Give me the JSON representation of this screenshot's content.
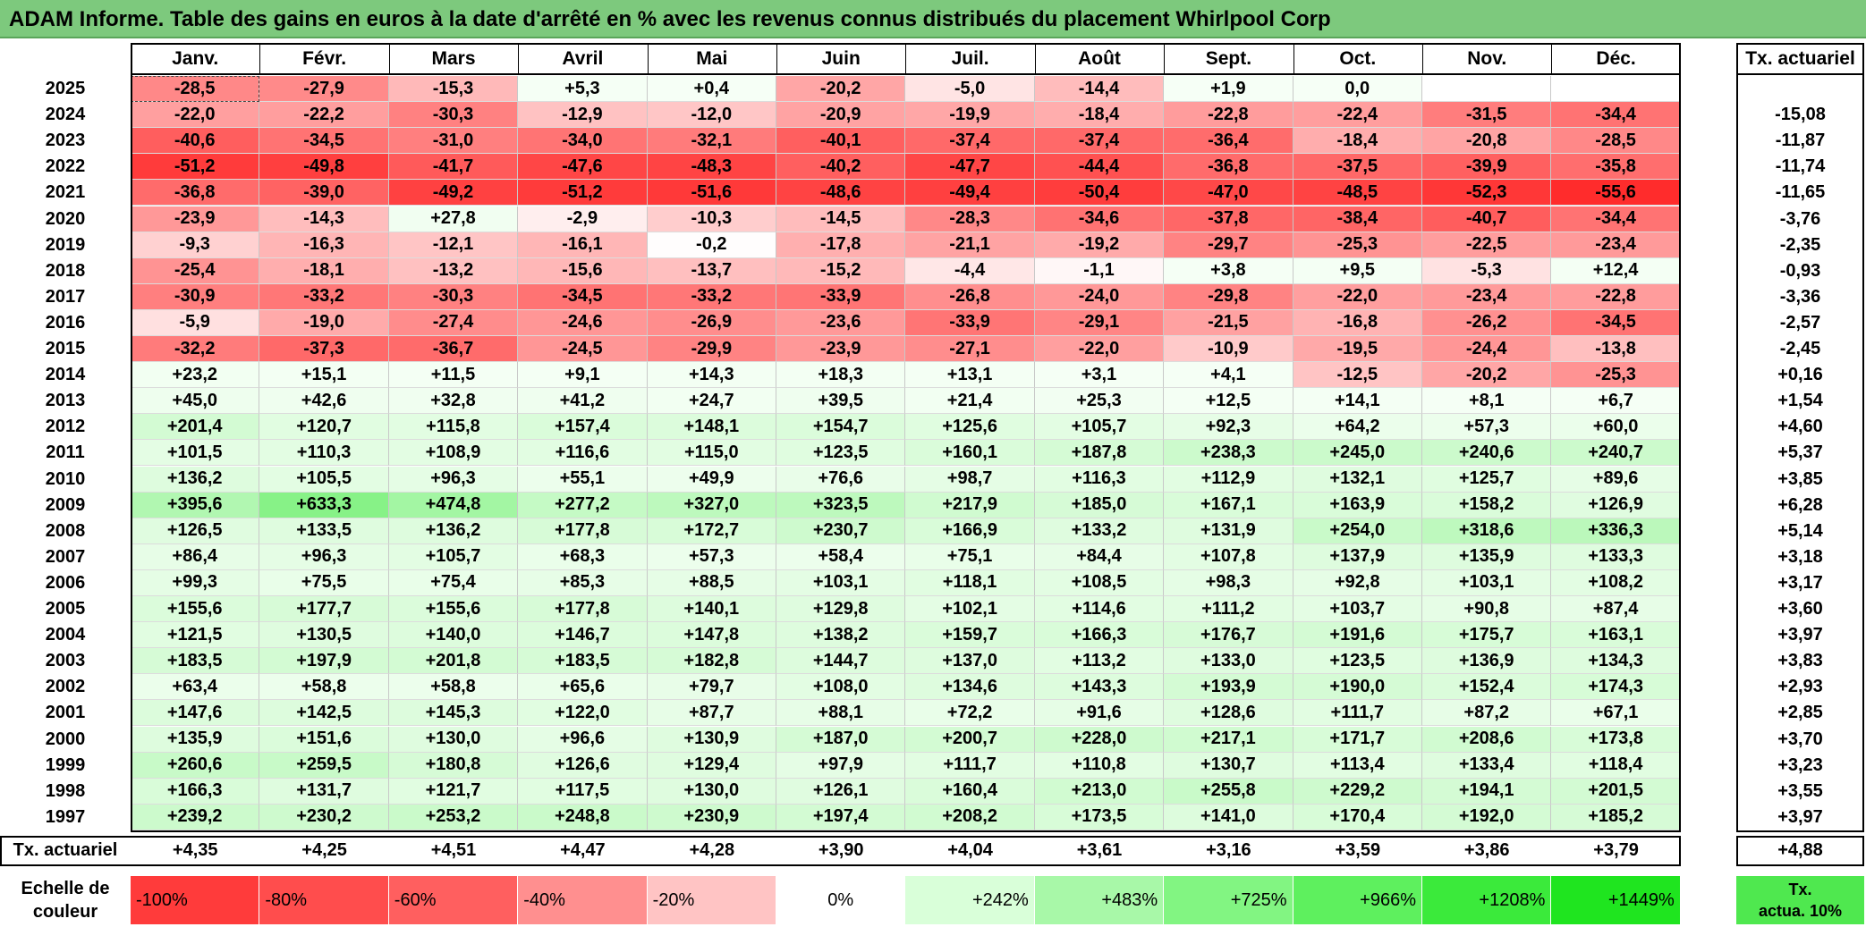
{
  "title": "ADAM Informe. Table des gains en euros à la date d'arrêté en % avec les revenus connus distribués du placement Whirlpool Corp",
  "colors": {
    "title_bg": "#7dc97d",
    "neg_max": "#ff2b2b",
    "pos_max": "#19e619",
    "zero": "#ffffff"
  },
  "chart_data": {
    "type": "heatmap",
    "title": "ADAM Informe. Table des gains en euros à la date d'arrêté en % avec les revenus connus distribués du placement Whirlpool Corp",
    "months": [
      "Janv.",
      "Févr.",
      "Mars",
      "Avril",
      "Mai",
      "Juin",
      "Juil.",
      "Août",
      "Sept.",
      "Oct.",
      "Nov.",
      "Déc."
    ],
    "right_header": "Tx. actuariel",
    "rows": [
      {
        "year": "2025",
        "values": [
          "-28,5",
          "-27,9",
          "-15,3",
          "+5,3",
          "+0,4",
          "-20,2",
          "-5,0",
          "-14,4",
          "+1,9",
          "0,0",
          "",
          ""
        ],
        "tx": ""
      },
      {
        "year": "2024",
        "values": [
          "-22,0",
          "-22,2",
          "-30,3",
          "-12,9",
          "-12,0",
          "-20,9",
          "-19,9",
          "-18,4",
          "-22,8",
          "-22,4",
          "-31,5",
          "-34,4"
        ],
        "tx": "-15,08"
      },
      {
        "year": "2023",
        "values": [
          "-40,6",
          "-34,5",
          "-31,0",
          "-34,0",
          "-32,1",
          "-40,1",
          "-37,4",
          "-37,4",
          "-36,4",
          "-18,4",
          "-20,8",
          "-28,5"
        ],
        "tx": "-11,87"
      },
      {
        "year": "2022",
        "values": [
          "-51,2",
          "-49,8",
          "-41,7",
          "-47,6",
          "-48,3",
          "-40,2",
          "-47,7",
          "-44,4",
          "-36,8",
          "-37,5",
          "-39,9",
          "-35,8"
        ],
        "tx": "-11,74"
      },
      {
        "year": "2021",
        "values": [
          "-36,8",
          "-39,0",
          "-49,2",
          "-51,2",
          "-51,6",
          "-48,6",
          "-49,4",
          "-50,4",
          "-47,0",
          "-48,5",
          "-52,3",
          "-55,6"
        ],
        "tx": "-11,65"
      },
      {
        "year": "2020",
        "values": [
          "-23,9",
          "-14,3",
          "+27,8",
          "-2,9",
          "-10,3",
          "-14,5",
          "-28,3",
          "-34,6",
          "-37,8",
          "-38,4",
          "-40,7",
          "-34,4"
        ],
        "tx": "-3,76"
      },
      {
        "year": "2019",
        "values": [
          "-9,3",
          "-16,3",
          "-12,1",
          "-16,1",
          "-0,2",
          "-17,8",
          "-21,1",
          "-19,2",
          "-29,7",
          "-25,3",
          "-22,5",
          "-23,4"
        ],
        "tx": "-2,35"
      },
      {
        "year": "2018",
        "values": [
          "-25,4",
          "-18,1",
          "-13,2",
          "-15,6",
          "-13,7",
          "-15,2",
          "-4,4",
          "-1,1",
          "+3,8",
          "+9,5",
          "-5,3",
          "+12,4"
        ],
        "tx": "-0,93"
      },
      {
        "year": "2017",
        "values": [
          "-30,9",
          "-33,2",
          "-30,3",
          "-34,5",
          "-33,2",
          "-33,9",
          "-26,8",
          "-24,0",
          "-29,8",
          "-22,0",
          "-23,4",
          "-22,8"
        ],
        "tx": "-3,36"
      },
      {
        "year": "2016",
        "values": [
          "-5,9",
          "-19,0",
          "-27,4",
          "-24,6",
          "-26,9",
          "-23,6",
          "-33,9",
          "-29,1",
          "-21,5",
          "-16,8",
          "-26,2",
          "-34,5"
        ],
        "tx": "-2,57"
      },
      {
        "year": "2015",
        "values": [
          "-32,2",
          "-37,3",
          "-36,7",
          "-24,5",
          "-29,9",
          "-23,9",
          "-27,1",
          "-22,0",
          "-10,9",
          "-19,5",
          "-24,4",
          "-13,8"
        ],
        "tx": "-2,45"
      },
      {
        "year": "2014",
        "values": [
          "+23,2",
          "+15,1",
          "+11,5",
          "+9,1",
          "+14,3",
          "+18,3",
          "+13,1",
          "+3,1",
          "+4,1",
          "-12,5",
          "-20,2",
          "-25,3"
        ],
        "tx": "+0,16"
      },
      {
        "year": "2013",
        "values": [
          "+45,0",
          "+42,6",
          "+32,8",
          "+41,2",
          "+24,7",
          "+39,5",
          "+21,4",
          "+25,3",
          "+12,5",
          "+14,1",
          "+8,1",
          "+6,7"
        ],
        "tx": "+1,54"
      },
      {
        "year": "2012",
        "values": [
          "+201,4",
          "+120,7",
          "+115,8",
          "+157,4",
          "+148,1",
          "+154,7",
          "+125,6",
          "+105,7",
          "+92,3",
          "+64,2",
          "+57,3",
          "+60,0"
        ],
        "tx": "+4,60"
      },
      {
        "year": "2011",
        "values": [
          "+101,5",
          "+110,3",
          "+108,9",
          "+116,6",
          "+115,0",
          "+123,5",
          "+160,1",
          "+187,8",
          "+238,3",
          "+245,0",
          "+240,6",
          "+240,7"
        ],
        "tx": "+5,37"
      },
      {
        "year": "2010",
        "values": [
          "+136,2",
          "+105,5",
          "+96,3",
          "+55,1",
          "+49,9",
          "+76,6",
          "+98,7",
          "+116,3",
          "+112,9",
          "+132,1",
          "+125,7",
          "+89,6"
        ],
        "tx": "+3,85"
      },
      {
        "year": "2009",
        "values": [
          "+395,6",
          "+633,3",
          "+474,8",
          "+277,2",
          "+327,0",
          "+323,5",
          "+217,9",
          "+185,0",
          "+167,1",
          "+163,9",
          "+158,2",
          "+126,9"
        ],
        "tx": "+6,28"
      },
      {
        "year": "2008",
        "values": [
          "+126,5",
          "+133,5",
          "+136,2",
          "+177,8",
          "+172,7",
          "+230,7",
          "+166,9",
          "+133,2",
          "+131,9",
          "+254,0",
          "+318,6",
          "+336,3"
        ],
        "tx": "+5,14"
      },
      {
        "year": "2007",
        "values": [
          "+86,4",
          "+96,3",
          "+105,7",
          "+68,3",
          "+57,3",
          "+58,4",
          "+75,1",
          "+84,4",
          "+107,8",
          "+137,9",
          "+135,9",
          "+133,3"
        ],
        "tx": "+3,18"
      },
      {
        "year": "2006",
        "values": [
          "+99,3",
          "+75,5",
          "+75,4",
          "+85,3",
          "+88,5",
          "+103,1",
          "+118,1",
          "+108,5",
          "+98,3",
          "+92,8",
          "+103,1",
          "+108,2"
        ],
        "tx": "+3,17"
      },
      {
        "year": "2005",
        "values": [
          "+155,6",
          "+177,7",
          "+155,6",
          "+177,8",
          "+140,1",
          "+129,8",
          "+102,1",
          "+114,6",
          "+111,2",
          "+103,7",
          "+90,8",
          "+87,4"
        ],
        "tx": "+3,60"
      },
      {
        "year": "2004",
        "values": [
          "+121,5",
          "+130,5",
          "+140,0",
          "+146,7",
          "+147,8",
          "+138,2",
          "+159,7",
          "+166,3",
          "+176,7",
          "+191,6",
          "+175,7",
          "+163,1"
        ],
        "tx": "+3,97"
      },
      {
        "year": "2003",
        "values": [
          "+183,5",
          "+197,9",
          "+201,8",
          "+183,5",
          "+182,8",
          "+144,7",
          "+137,0",
          "+113,2",
          "+133,0",
          "+123,5",
          "+136,9",
          "+134,3"
        ],
        "tx": "+3,83"
      },
      {
        "year": "2002",
        "values": [
          "+63,4",
          "+58,8",
          "+58,8",
          "+65,6",
          "+79,7",
          "+108,0",
          "+134,6",
          "+143,3",
          "+193,9",
          "+190,0",
          "+152,4",
          "+174,3"
        ],
        "tx": "+2,93"
      },
      {
        "year": "2001",
        "values": [
          "+147,6",
          "+142,5",
          "+145,3",
          "+122,0",
          "+87,7",
          "+88,1",
          "+72,2",
          "+91,6",
          "+128,6",
          "+111,7",
          "+87,2",
          "+67,1"
        ],
        "tx": "+2,85"
      },
      {
        "year": "2000",
        "values": [
          "+135,9",
          "+151,6",
          "+130,0",
          "+96,6",
          "+130,9",
          "+187,0",
          "+200,7",
          "+228,0",
          "+217,1",
          "+171,7",
          "+208,6",
          "+173,8"
        ],
        "tx": "+3,70"
      },
      {
        "year": "1999",
        "values": [
          "+260,6",
          "+259,5",
          "+180,8",
          "+126,6",
          "+129,4",
          "+97,9",
          "+111,7",
          "+110,8",
          "+130,7",
          "+113,4",
          "+133,4",
          "+118,4"
        ],
        "tx": "+3,23"
      },
      {
        "year": "1998",
        "values": [
          "+166,3",
          "+131,7",
          "+121,7",
          "+117,5",
          "+130,0",
          "+126,1",
          "+160,4",
          "+213,0",
          "+255,8",
          "+229,2",
          "+194,1",
          "+201,5"
        ],
        "tx": "+3,55"
      },
      {
        "year": "1997",
        "values": [
          "+239,2",
          "+230,2",
          "+253,2",
          "+248,8",
          "+230,9",
          "+197,4",
          "+208,2",
          "+173,5",
          "+141,0",
          "+170,4",
          "+192,0",
          "+185,2"
        ],
        "tx": "+3,97"
      }
    ],
    "footer": {
      "label": "Tx. actuariel",
      "values": [
        "+4,35",
        "+4,25",
        "+4,51",
        "+4,47",
        "+4,28",
        "+3,90",
        "+4,04",
        "+3,61",
        "+3,16",
        "+3,59",
        "+3,86",
        "+3,79"
      ],
      "total": "+4,88"
    },
    "scale": {
      "label_line1": "Echelle de",
      "label_line2": "couleur",
      "cells": [
        "-100%",
        "-80%",
        "-60%",
        "-40%",
        "-20%",
        "0%",
        "+242%",
        "+483%",
        "+725%",
        "+966%",
        "+1208%",
        "+1449%"
      ],
      "right_line1": "Tx.",
      "right_line2": "actua. 10%"
    }
  }
}
